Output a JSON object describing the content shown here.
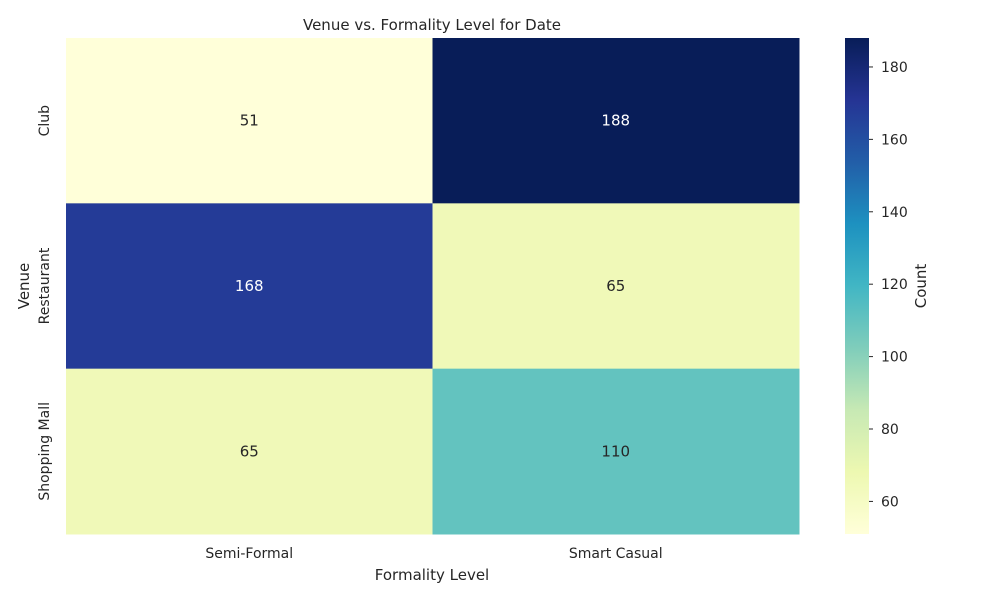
{
  "chart_data": {
    "type": "heatmap",
    "title": "Venue vs. Formality Level for Date",
    "xlabel": "Formality Level",
    "ylabel": "Venue",
    "x_categories": [
      "Semi-Formal",
      "Smart Casual"
    ],
    "y_categories": [
      "Club",
      "Restaurant",
      "Shopping Mall"
    ],
    "values": [
      [
        51,
        188
      ],
      [
        168,
        65
      ],
      [
        65,
        110
      ]
    ],
    "colorbar": {
      "label": "Count",
      "range": [
        51,
        188
      ],
      "ticks": [
        60,
        80,
        100,
        120,
        140,
        160,
        180
      ],
      "colormap": "YlGnBu"
    }
  }
}
